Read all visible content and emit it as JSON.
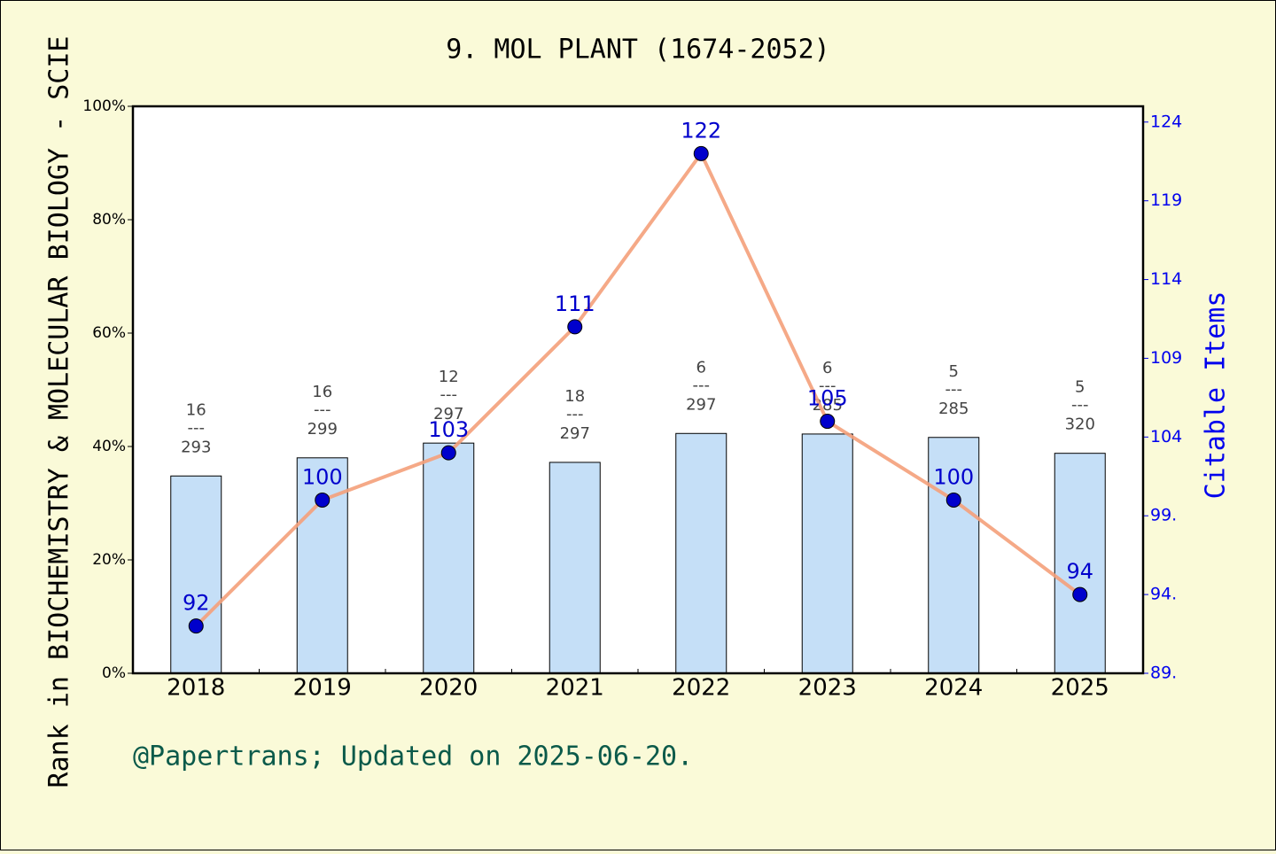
{
  "chart_data": {
    "type": "combo",
    "title": "9. MOL PLANT (1674-2052)",
    "y_label": "Rank in BIOCHEMISTRY & MOLECULAR BIOLOGY - SCIE",
    "y2_label": "Citable Items",
    "footer": "@Papertrans; Updated on 2025-06-20.",
    "categories": [
      "2018",
      "2019",
      "2020",
      "2021",
      "2022",
      "2023",
      "2024",
      "2025"
    ],
    "series": [
      {
        "type": "bar",
        "color": "#c5dff7",
        "values": [
          34.8,
          38.0,
          40.6,
          37.2,
          42.3,
          42.2,
          41.6,
          38.8
        ],
        "ranks": [
          16,
          16,
          12,
          18,
          6,
          6,
          5,
          5
        ],
        "totals": [
          293,
          299,
          297,
          297,
          297,
          285,
          285,
          320
        ],
        "separator": "---"
      },
      {
        "type": "line",
        "axis": "y2",
        "color": "#f4a07a",
        "marker_color": "#0000cc",
        "values": [
          92,
          100,
          103,
          111,
          122,
          105,
          100,
          94
        ]
      }
    ],
    "ylim": [
      0,
      100
    ],
    "yticks": [
      {
        "value": 0,
        "label": "0%"
      },
      {
        "value": 20,
        "label": "20%"
      },
      {
        "value": 40,
        "label": "40%"
      },
      {
        "value": 60,
        "label": "60%"
      },
      {
        "value": 80,
        "label": "80%"
      },
      {
        "value": 100,
        "label": "100%"
      }
    ],
    "y2lim": [
      89,
      125
    ],
    "y2ticks": [
      {
        "value": 89,
        "label": "89."
      },
      {
        "value": 94,
        "label": "94."
      },
      {
        "value": 99,
        "label": "99."
      },
      104,
      109,
      114,
      119,
      124
    ]
  }
}
